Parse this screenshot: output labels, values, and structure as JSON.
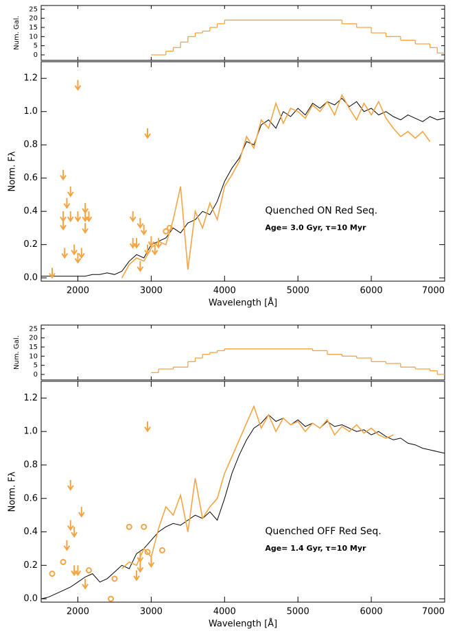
{
  "chart_data": [
    {
      "type": "histogram",
      "ylabel": "Num. Gal.",
      "color": "#f4a442",
      "bins": [
        3000,
        3200,
        3300,
        3400,
        3500,
        3600,
        3700,
        3800,
        3900,
        4000,
        5600,
        5800,
        6000,
        6200,
        6400,
        6600,
        6800,
        6900,
        7000
      ],
      "values": [
        0,
        2,
        4,
        7,
        10,
        12,
        13,
        15,
        17,
        19,
        17,
        15,
        12,
        10,
        8,
        6,
        4,
        1
      ],
      "xlim": [
        1500,
        7000
      ],
      "ylim": [
        -3,
        27
      ],
      "xticks": [
        2000,
        3000,
        4000,
        5000,
        6000,
        7000
      ],
      "yticks": [
        0,
        5,
        10,
        15,
        20,
        25
      ]
    },
    {
      "type": "line",
      "xlabel": "Wavelength [Å]",
      "ylabel": "Norm. Fλ",
      "annotations": [
        "Quenched ON Red Seq.",
        "Age= 3.0 Gyr, τ=10 Myr"
      ],
      "xlim": [
        1500,
        7000
      ],
      "ylim": [
        -0.02,
        1.3
      ],
      "xticks": [
        2000,
        3000,
        4000,
        5000,
        6000,
        7000
      ],
      "yticks": [
        {
          "value": 0,
          "label": "0.0"
        },
        0.2,
        0.4,
        0.6,
        0.8,
        {
          "value": 1,
          "label": "1.0"
        },
        1.2
      ],
      "series": [
        {
          "marker": "line",
          "color": "#000000",
          "x": [
            1500,
            1600,
            1700,
            1800,
            1900,
            2000,
            2100,
            2200,
            2300,
            2400,
            2500,
            2600,
            2700,
            2800,
            2900,
            3000,
            3100,
            3200,
            3300,
            3400,
            3500,
            3600,
            3700,
            3800,
            3900,
            4000,
            4100,
            4200,
            4300,
            4400,
            4500,
            4600,
            4700,
            4800,
            4900,
            5000,
            5100,
            5200,
            5300,
            5400,
            5500,
            5600,
            5700,
            5800,
            5900,
            6000,
            6100,
            6200,
            6300,
            6400,
            6500,
            6600,
            6700,
            6800,
            6900,
            7000
          ],
          "values": [
            0.01,
            0.01,
            0.01,
            0.01,
            0.01,
            0.01,
            0.01,
            0.02,
            0.02,
            0.03,
            0.02,
            0.04,
            0.1,
            0.14,
            0.12,
            0.2,
            0.22,
            0.24,
            0.3,
            0.27,
            0.33,
            0.35,
            0.4,
            0.38,
            0.46,
            0.58,
            0.66,
            0.72,
            0.82,
            0.8,
            0.92,
            0.95,
            0.9,
            1.0,
            0.97,
            1.02,
            0.98,
            1.05,
            1.02,
            1.06,
            1.04,
            1.08,
            1.03,
            1.06,
            1.0,
            1.02,
            0.98,
            1.0,
            0.97,
            0.95,
            0.98,
            0.96,
            0.94,
            0.97,
            0.95,
            0.96
          ]
        },
        {
          "marker": "line",
          "color": "#f4a442",
          "x": [
            2600,
            2700,
            2800,
            2900,
            3000,
            3100,
            3200,
            3300,
            3400,
            3500,
            3600,
            3700,
            3800,
            3900,
            4000,
            4100,
            4200,
            4300,
            4400,
            4500,
            4600,
            4700,
            4800,
            4900,
            5000,
            5100,
            5200,
            5300,
            5400,
            5500,
            5600,
            5700,
            5800,
            5900,
            6000,
            6100,
            6200,
            6300,
            6400,
            6500,
            6600,
            6700,
            6800
          ],
          "values": [
            0.0,
            0.08,
            0.12,
            0.1,
            0.18,
            0.22,
            0.2,
            0.35,
            0.55,
            0.05,
            0.4,
            0.3,
            0.45,
            0.35,
            0.55,
            0.62,
            0.7,
            0.85,
            0.78,
            0.95,
            0.9,
            1.05,
            0.93,
            1.02,
            1.0,
            0.96,
            1.04,
            1.0,
            1.06,
            0.98,
            1.1,
            1.02,
            0.95,
            1.05,
            0.98,
            1.06,
            0.96,
            0.9,
            0.85,
            0.88,
            0.84,
            0.88,
            0.82
          ]
        },
        {
          "marker": "arrow",
          "color": "#f4a442",
          "x": [
            1650,
            1800,
            1800,
            1800,
            1820,
            1850,
            1900,
            1900,
            1950,
            2000,
            2000,
            2000,
            2050,
            2100,
            2100,
            2100,
            2150,
            2750,
            2750,
            2800,
            2850,
            2900,
            2950,
            2950,
            3000,
            3050,
            3100,
            2850
          ],
          "values": [
            0.06,
            0.65,
            0.4,
            0.35,
            0.18,
            0.48,
            0.55,
            0.4,
            0.2,
            1.19,
            0.4,
            0.15,
            0.18,
            0.45,
            0.4,
            0.33,
            0.4,
            0.4,
            0.24,
            0.24,
            0.36,
            0.32,
            0.9,
            0.2,
            0.25,
            0.2,
            0.24,
            0.1
          ]
        },
        {
          "marker": "circle",
          "color": "#f4a442",
          "x": [
            3200,
            3250
          ],
          "values": [
            0.28,
            0.3
          ]
        }
      ]
    },
    {
      "type": "histogram",
      "ylabel": "Num. Gal.",
      "color": "#f4a442",
      "bins": [
        3000,
        3100,
        3300,
        3500,
        3600,
        3700,
        3800,
        3900,
        4000,
        5200,
        5400,
        5600,
        5800,
        6000,
        6200,
        6400,
        6600,
        6800,
        6900,
        7000
      ],
      "values": [
        1,
        3,
        4,
        7,
        9,
        11,
        12,
        13,
        14,
        13,
        11,
        10,
        9,
        7,
        6,
        4,
        3,
        2,
        0
      ],
      "xlim": [
        1500,
        7000
      ],
      "ylim": [
        -3,
        27
      ],
      "xticks": [
        2000,
        3000,
        4000,
        5000,
        6000,
        7000
      ],
      "yticks": [
        0,
        5,
        10,
        15,
        20,
        25
      ]
    },
    {
      "type": "line",
      "xlabel": "Wavelength [Å]",
      "ylabel": "Norm. Fλ",
      "annotations": [
        "Quenched OFF Red Seq.",
        "Age= 1.4 Gyr, τ=10 Myr"
      ],
      "xlim": [
        1500,
        7000
      ],
      "ylim": [
        -0.02,
        1.3
      ],
      "xticks": [
        2000,
        3000,
        4000,
        5000,
        6000,
        7000
      ],
      "yticks": [
        {
          "value": 0,
          "label": "0.0"
        },
        0.2,
        0.4,
        0.6,
        0.8,
        {
          "value": 1,
          "label": "1.0"
        },
        1.2
      ],
      "series": [
        {
          "marker": "line",
          "color": "#000000",
          "x": [
            1500,
            1600,
            1700,
            1800,
            1900,
            2000,
            2100,
            2200,
            2300,
            2400,
            2500,
            2600,
            2700,
            2800,
            2900,
            3000,
            3100,
            3200,
            3300,
            3400,
            3500,
            3600,
            3700,
            3800,
            3900,
            4000,
            4100,
            4200,
            4300,
            4400,
            4500,
            4600,
            4700,
            4800,
            4900,
            5000,
            5100,
            5200,
            5300,
            5400,
            5500,
            5600,
            5700,
            5800,
            5900,
            6000,
            6100,
            6200,
            6300,
            6400,
            6500,
            6600,
            6700,
            6800,
            6900,
            7000
          ],
          "values": [
            0.0,
            0.01,
            0.03,
            0.05,
            0.07,
            0.1,
            0.13,
            0.15,
            0.1,
            0.12,
            0.16,
            0.2,
            0.18,
            0.27,
            0.3,
            0.35,
            0.4,
            0.43,
            0.45,
            0.44,
            0.47,
            0.5,
            0.48,
            0.52,
            0.47,
            0.6,
            0.75,
            0.86,
            0.95,
            1.02,
            1.05,
            1.1,
            1.06,
            1.08,
            1.04,
            1.07,
            1.03,
            1.05,
            1.02,
            1.06,
            1.03,
            1.04,
            1.02,
            1.0,
            1.01,
            0.98,
            1.0,
            0.97,
            0.95,
            0.96,
            0.93,
            0.92,
            0.9,
            0.89,
            0.88,
            0.87
          ]
        },
        {
          "marker": "line",
          "color": "#f4a442",
          "x": [
            2600,
            2700,
            2800,
            2900,
            3000,
            3100,
            3200,
            3300,
            3400,
            3500,
            3600,
            3700,
            3800,
            3900,
            4000,
            4100,
            4200,
            4300,
            4400,
            4500,
            4600,
            4700,
            4800,
            4900,
            5000,
            5100,
            5200,
            5300,
            5400,
            5500,
            5600,
            5700,
            5800,
            5900,
            6000,
            6100,
            6200,
            6300
          ],
          "values": [
            0.18,
            0.22,
            0.2,
            0.3,
            0.25,
            0.42,
            0.55,
            0.5,
            0.62,
            0.4,
            0.72,
            0.48,
            0.55,
            0.6,
            0.75,
            0.85,
            0.95,
            1.05,
            1.15,
            1.02,
            1.1,
            1.0,
            1.08,
            1.04,
            1.06,
            1.0,
            1.05,
            1.02,
            1.07,
            0.98,
            1.03,
            1.0,
            1.04,
            0.99,
            1.02,
            0.98,
            0.96,
            0.98
          ]
        },
        {
          "marker": "arrow",
          "color": "#f4a442",
          "x": [
            1850,
            1900,
            1900,
            1950,
            1950,
            2000,
            2050,
            2100,
            2850,
            2850,
            2950,
            3000,
            2800
          ],
          "values": [
            0.35,
            0.71,
            0.47,
            0.43,
            0.2,
            0.2,
            0.55,
            0.12,
            0.28,
            0.22,
            1.06,
            0.25,
            0.17
          ]
        },
        {
          "marker": "circle",
          "color": "#f4a442",
          "x": [
            1650,
            1800,
            2150,
            2450,
            2500,
            2700,
            2900,
            2950,
            3150
          ],
          "values": [
            0.15,
            0.22,
            0.17,
            0.0,
            0.12,
            0.43,
            0.43,
            0.28,
            0.29
          ]
        }
      ]
    }
  ]
}
